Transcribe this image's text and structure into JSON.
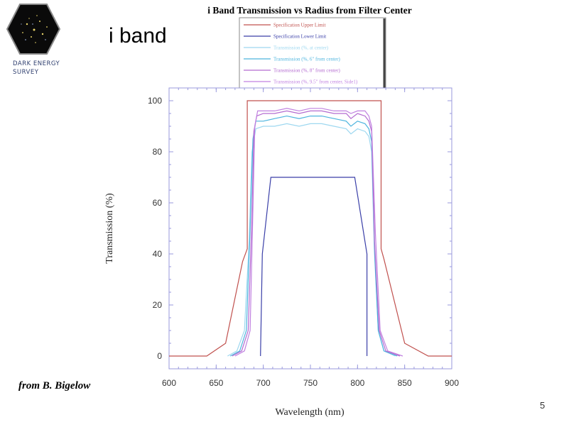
{
  "slide": {
    "title": "i band",
    "org_name_line1": "DARK ENERGY",
    "org_name_line2": "SURVEY",
    "credit": "from B. Bigelow",
    "page_number": "5"
  },
  "colors": {
    "upper_limit": "#c0504d",
    "lower_limit": "#3a3fa8",
    "center": "#9ed8f0",
    "six_inch": "#4cb4de",
    "eight_inch": "#b36ad0",
    "nine_half_inch": "#c080e0",
    "axis": "#9999dd",
    "logo_bg": "#0a0a0a",
    "logo_border": "#888888"
  },
  "chart_data": {
    "type": "line",
    "title": "i Band Transmission vs Radius from Filter Center",
    "xlabel": "Wavelength (nm)",
    "ylabel": "Transmission (%)",
    "xlim": [
      600,
      900
    ],
    "ylim": [
      -5,
      105
    ],
    "xticks": [
      600,
      650,
      700,
      750,
      800,
      850,
      900
    ],
    "yticks": [
      0,
      20,
      40,
      60,
      80,
      100
    ],
    "legend_placement": "top-right",
    "series": [
      {
        "name": "Specification Upper Limit",
        "color_key": "upper_limit",
        "x": [
          600,
          640,
          660,
          678,
          683,
          683,
          825,
          825,
          828,
          850,
          875,
          900
        ],
        "y": [
          0,
          0,
          5,
          37,
          42,
          100,
          100,
          42,
          38,
          5,
          0,
          0
        ]
      },
      {
        "name": "Specification Lower Limit",
        "color_key": "lower_limit",
        "x": [
          600,
          697,
          697,
          699,
          708,
          797,
          810,
          810,
          812,
          900
        ],
        "y": [
          null,
          null,
          0,
          40,
          70,
          70,
          40,
          0,
          null,
          null
        ]
      },
      {
        "name": "Transmission (%, at center)",
        "color_key": "center",
        "x": [
          662,
          672,
          680,
          685,
          688,
          692,
          700,
          712,
          725,
          738,
          750,
          762,
          775,
          788,
          793,
          800,
          808,
          812,
          815,
          818,
          822,
          828,
          840
        ],
        "y": [
          0,
          2,
          10,
          45,
          80,
          89,
          90,
          90,
          91,
          90,
          91,
          91,
          90,
          89,
          87,
          89,
          88,
          86,
          80,
          40,
          10,
          2,
          0
        ]
      },
      {
        "name": "Transmission (%, 6\" from center)",
        "color_key": "six_inch",
        "x": [
          665,
          675,
          682,
          686,
          689,
          692,
          700,
          712,
          725,
          738,
          750,
          762,
          775,
          788,
          793,
          800,
          808,
          812,
          815,
          818,
          822,
          828,
          842
        ],
        "y": [
          0,
          2,
          10,
          50,
          85,
          92,
          92,
          93,
          94,
          93,
          94,
          94,
          93,
          92,
          90,
          92,
          91,
          89,
          84,
          42,
          10,
          2,
          0
        ]
      },
      {
        "name": "Transmission (%, 8\" from center)",
        "color_key": "eight_inch",
        "x": [
          667,
          677,
          684,
          688,
          690,
          693,
          700,
          712,
          725,
          738,
          750,
          762,
          775,
          788,
          793,
          800,
          808,
          812,
          815,
          818,
          823,
          830,
          845
        ],
        "y": [
          0,
          2,
          10,
          55,
          88,
          94,
          95,
          95,
          96,
          95,
          96,
          96,
          95,
          95,
          93,
          95,
          94,
          92,
          88,
          45,
          10,
          2,
          0
        ]
      },
      {
        "name": "Transmission (%, 9.5\" from center, Side1)",
        "color_key": "nine_half_inch",
        "x": [
          670,
          680,
          686,
          689,
          691,
          694,
          700,
          712,
          725,
          738,
          750,
          762,
          775,
          788,
          793,
          800,
          808,
          812,
          815,
          819,
          824,
          832,
          848
        ],
        "y": [
          0,
          2,
          10,
          58,
          90,
          96,
          96,
          96,
          97,
          96,
          97,
          97,
          96,
          96,
          95,
          96,
          96,
          94,
          90,
          48,
          10,
          2,
          0
        ]
      }
    ]
  }
}
